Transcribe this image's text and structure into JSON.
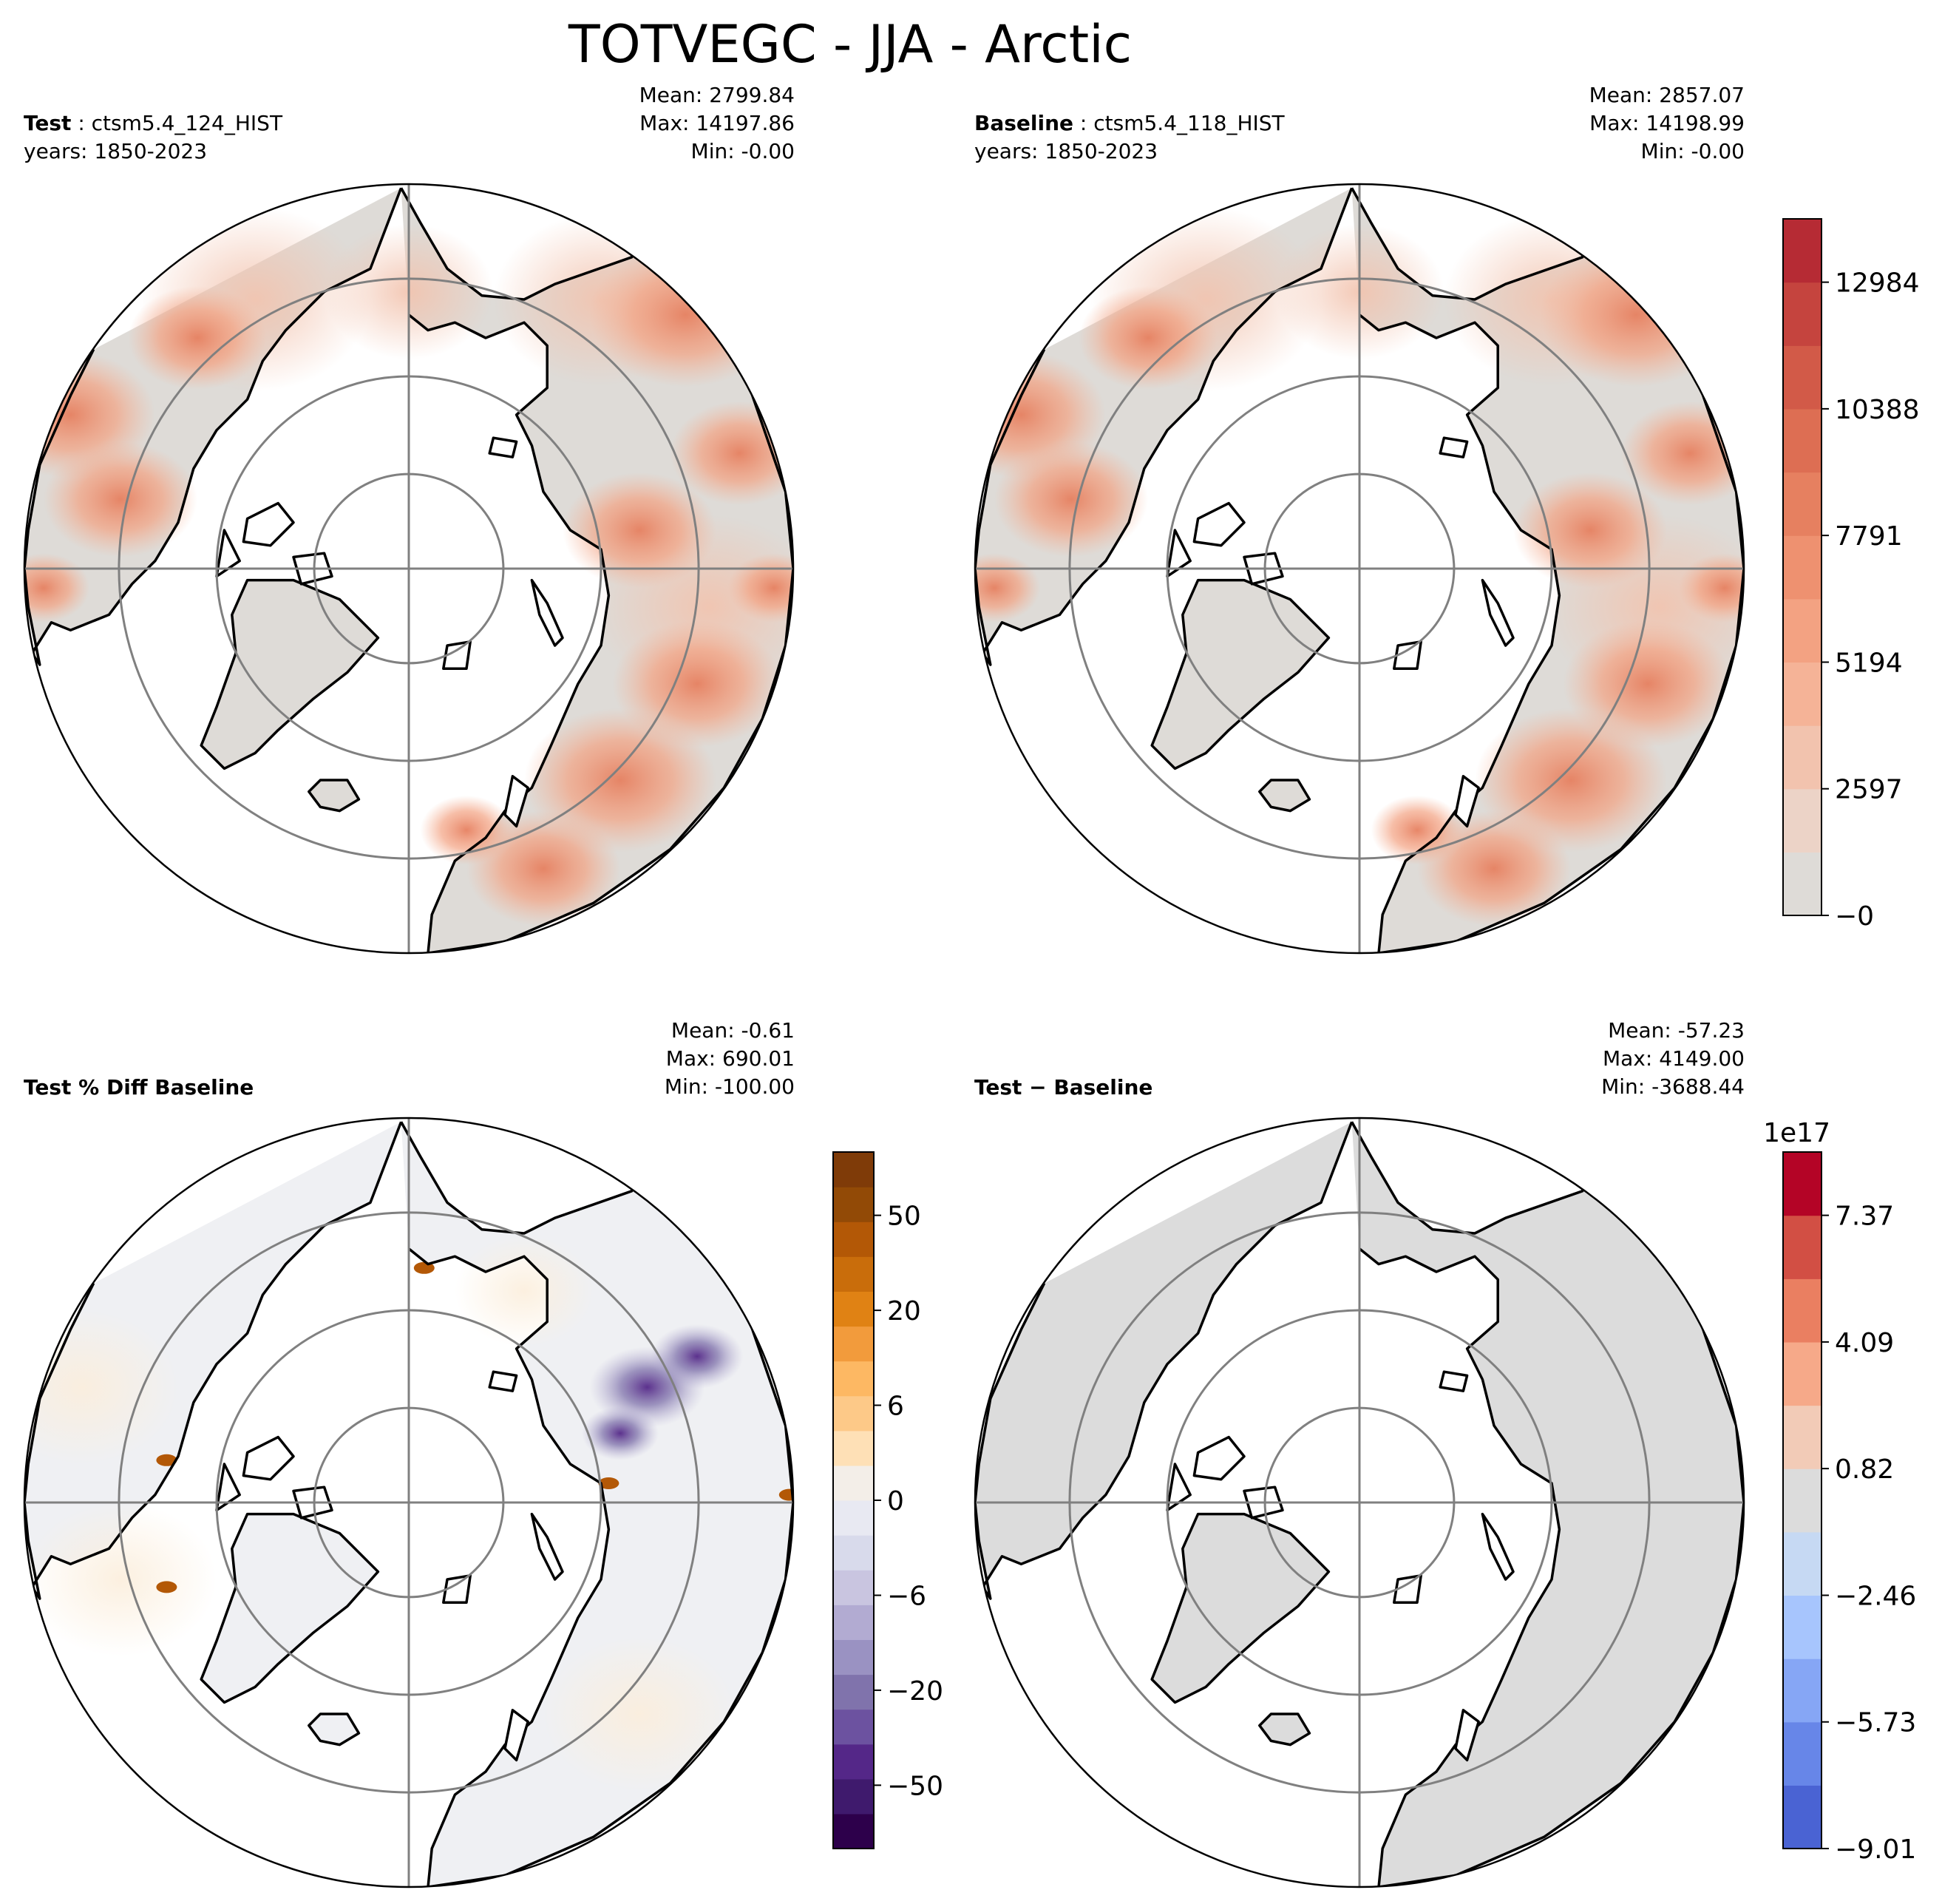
{
  "title": "TOTVEGC - JJA - Arctic",
  "panels": {
    "test": {
      "label": "Test",
      "case": "ctsm5.4_124_HIST",
      "years": "years: 1850-2023",
      "mean": "Mean: 2799.84",
      "max": "Max: 14197.86",
      "min": "Min: -0.00"
    },
    "baseline": {
      "label": "Baseline",
      "case": "ctsm5.4_118_HIST",
      "years": "years: 1850-2023",
      "mean": "Mean: 2857.07",
      "max": "Max: 14198.99",
      "min": "Min: -0.00"
    },
    "pct_diff": {
      "label": "Test % Diff Baseline",
      "mean": "Mean: -0.61",
      "max": "Max: 690.01",
      "min": "Min: -100.00"
    },
    "abs_diff": {
      "label": "Test − Baseline",
      "mean": "Mean: -57.23",
      "max": "Max: 4149.00",
      "min": "Min: -3688.44"
    }
  },
  "colorbars": {
    "main": {
      "ticks": [
        "−0",
        "2597",
        "5194",
        "7791",
        "10388",
        "12984"
      ],
      "colors": [
        "#dedbd7",
        "#ecd3c7",
        "#f2c3ae",
        "#f5b397",
        "#f3a282",
        "#ee9170",
        "#e68060",
        "#dd6e53",
        "#d25a48",
        "#c5443e",
        "#b62b34"
      ]
    },
    "pct": {
      "ticks": [
        "−50",
        "−20",
        "−6",
        "0",
        "6",
        "20",
        "50"
      ],
      "colors": [
        "#2d004b",
        "#3f1a6d",
        "#542788",
        "#6c52a0",
        "#8073ac",
        "#9a92c2",
        "#b2abd2",
        "#c9c5e0",
        "#d8daeb",
        "#e8e9f2",
        "#f3eee8",
        "#fee0b6",
        "#fdc988",
        "#fdb863",
        "#f29b3c",
        "#e08214",
        "#c96d0b",
        "#b35806",
        "#924a06",
        "#7f3b08"
      ]
    },
    "diff": {
      "offset": "1e17",
      "ticks": [
        "−9.01",
        "−5.73",
        "−2.46",
        "0.82",
        "4.09",
        "7.37"
      ],
      "colors": [
        "#4a63d3",
        "#6786e8",
        "#86a6f5",
        "#a7c5fd",
        "#c6d9f3",
        "#dcdcdc",
        "#f2cbb7",
        "#f6a989",
        "#ea7f61",
        "#d24f44",
        "#b40426"
      ]
    }
  },
  "map": {
    "land_color": "#dedbd7",
    "diff_land_color": "#dcdcdc",
    "pct_land_color": "#eff0f3",
    "grid_color": "#808080",
    "coast_color": "#000000"
  }
}
